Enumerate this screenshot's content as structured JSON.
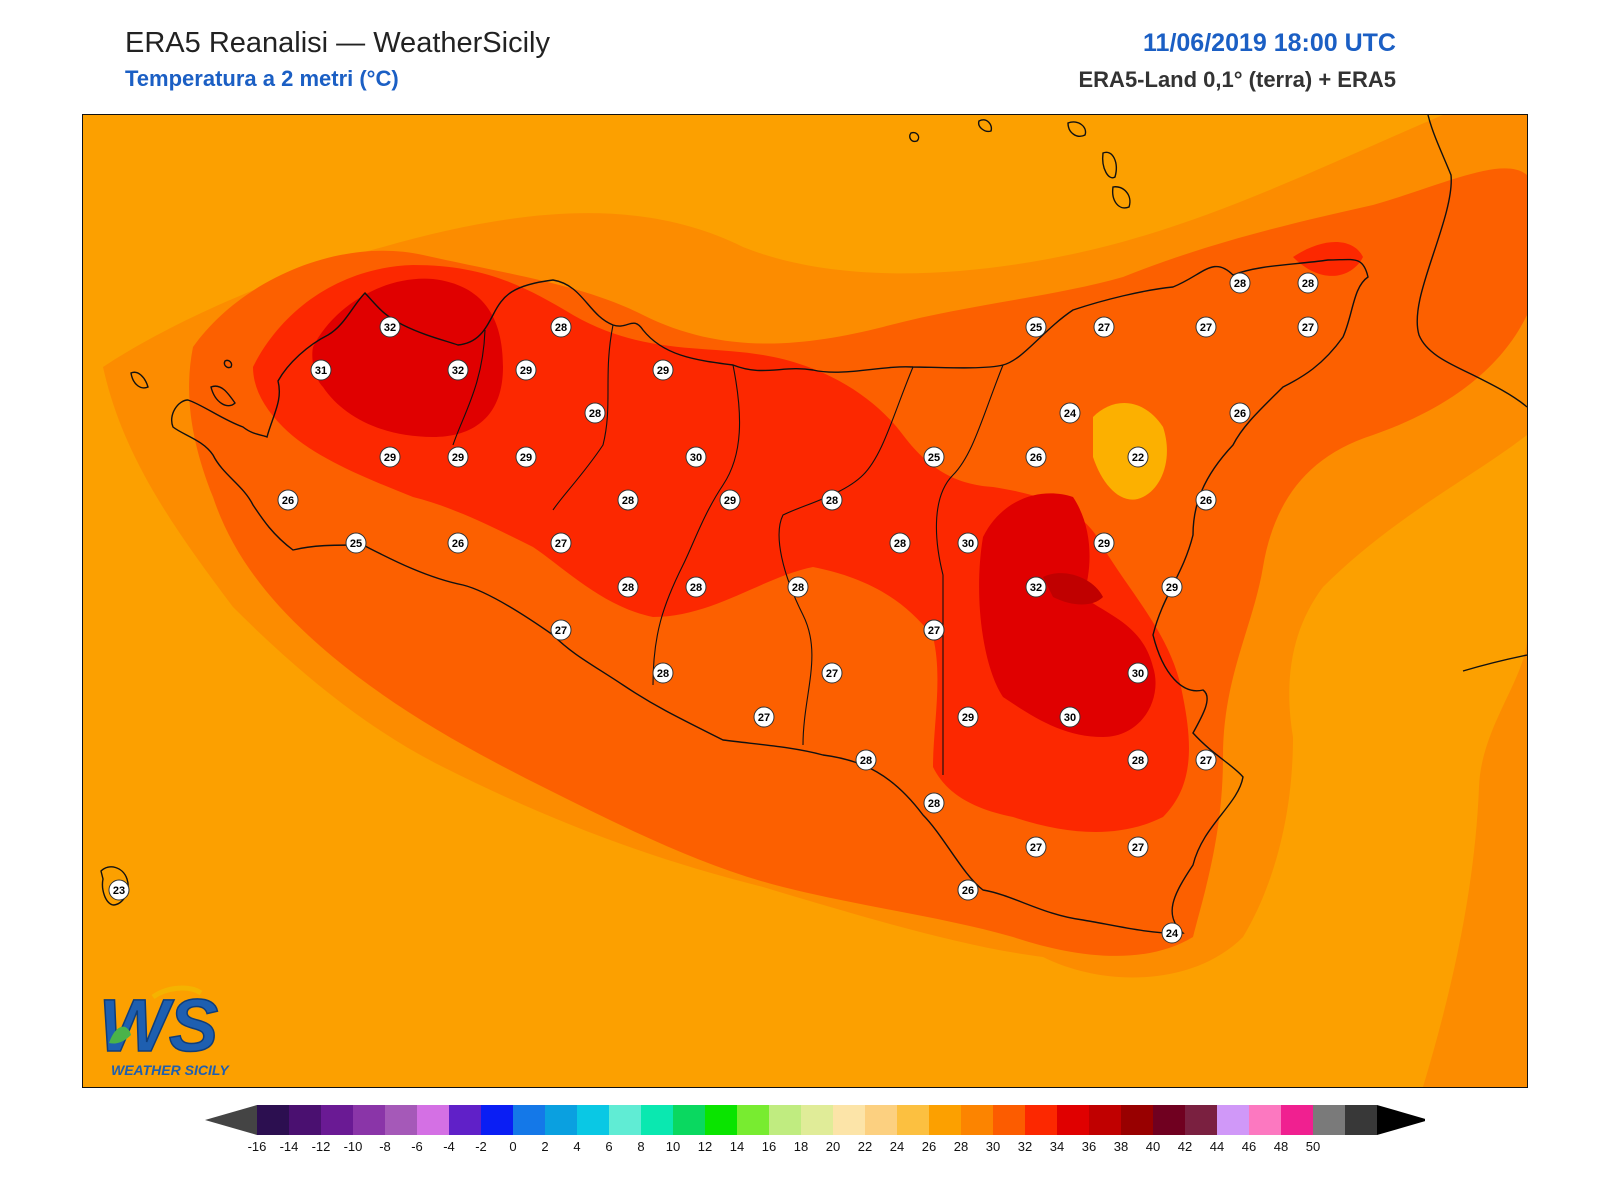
{
  "header": {
    "title": "ERA5 Reanalisi — WeatherSicily",
    "subtitle": "Temperatura a 2 metri (°C)",
    "datetime": "11/06/2019 18:00 UTC",
    "source": "ERA5-Land 0,1° (terra) + ERA5"
  },
  "logo": {
    "letters": "WS",
    "name": "WEATHER SICILY"
  },
  "map": {
    "variable": "2 m air temperature",
    "unit": "°C",
    "station_labels": [
      {
        "value": "32"
      },
      {
        "value": "28"
      },
      {
        "value": "31"
      },
      {
        "value": "32"
      },
      {
        "value": "29"
      },
      {
        "value": "29"
      },
      {
        "value": "28"
      },
      {
        "value": "29"
      },
      {
        "value": "29"
      },
      {
        "value": "29"
      },
      {
        "value": "30"
      },
      {
        "value": "26"
      },
      {
        "value": "28"
      },
      {
        "value": "29"
      },
      {
        "value": "28"
      },
      {
        "value": "25"
      },
      {
        "value": "26"
      },
      {
        "value": "27"
      },
      {
        "value": "28"
      },
      {
        "value": "28"
      },
      {
        "value": "28"
      },
      {
        "value": "27"
      },
      {
        "value": "28"
      },
      {
        "value": "27"
      },
      {
        "value": "27"
      },
      {
        "value": "28"
      },
      {
        "value": "27"
      },
      {
        "value": "26"
      },
      {
        "value": "25"
      },
      {
        "value": "27"
      },
      {
        "value": "28"
      },
      {
        "value": "28"
      },
      {
        "value": "27"
      },
      {
        "value": "27"
      },
      {
        "value": "26"
      },
      {
        "value": "24"
      },
      {
        "value": "22"
      },
      {
        "value": "25"
      },
      {
        "value": "26"
      },
      {
        "value": "26"
      },
      {
        "value": "28"
      },
      {
        "value": "30"
      },
      {
        "value": "29"
      },
      {
        "value": "32"
      },
      {
        "value": "29"
      },
      {
        "value": "27"
      },
      {
        "value": "30"
      },
      {
        "value": "29"
      },
      {
        "value": "30"
      },
      {
        "value": "28"
      },
      {
        "value": "27"
      },
      {
        "value": "28"
      },
      {
        "value": "27"
      },
      {
        "value": "27"
      },
      {
        "value": "26"
      },
      {
        "value": "24"
      },
      {
        "value": "23"
      }
    ]
  },
  "colorbar": {
    "ticks": [
      "-16",
      "-14",
      "-12",
      "-10",
      "-8",
      "-6",
      "-4",
      "-2",
      "0",
      "2",
      "4",
      "6",
      "8",
      "10",
      "12",
      "14",
      "16",
      "18",
      "20",
      "22",
      "24",
      "26",
      "28",
      "30",
      "32",
      "34",
      "36",
      "38",
      "40",
      "42",
      "44",
      "46",
      "48",
      "50"
    ],
    "colors": [
      "#2c0f50",
      "#4a1070",
      "#6a1a94",
      "#8a35a8",
      "#a559b8",
      "#d470e4",
      "#6020c8",
      "#0a1ef4",
      "#1478e8",
      "#0aa0e0",
      "#0ac8e4",
      "#60ecd4",
      "#0ae8b0",
      "#0ad860",
      "#0ae400",
      "#78ec30",
      "#c0ec80",
      "#e0ec98",
      "#fce4a8",
      "#fcd080",
      "#fcc040",
      "#fca000",
      "#fc8400",
      "#fc5c00",
      "#fc2800",
      "#e00000",
      "#c00000",
      "#980000",
      "#700020",
      "#7a2040",
      "#d098f8",
      "#fc78c0",
      "#f02090",
      "#7a7a7a",
      "#383838"
    ],
    "left_cap": "#444444",
    "right_cap": "#000000"
  }
}
